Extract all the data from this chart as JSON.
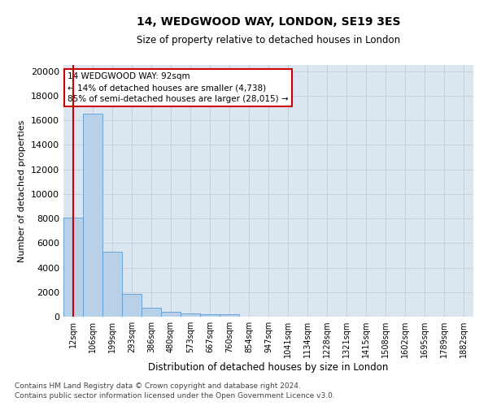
{
  "title1": "14, WEDGWOOD WAY, LONDON, SE19 3ES",
  "title2": "Size of property relative to detached houses in London",
  "xlabel": "Distribution of detached houses by size in London",
  "ylabel": "Number of detached properties",
  "categories": [
    "12sqm",
    "106sqm",
    "199sqm",
    "293sqm",
    "386sqm",
    "480sqm",
    "573sqm",
    "667sqm",
    "760sqm",
    "854sqm",
    "947sqm",
    "1041sqm",
    "1134sqm",
    "1228sqm",
    "1321sqm",
    "1415sqm",
    "1508sqm",
    "1602sqm",
    "1695sqm",
    "1789sqm",
    "1882sqm"
  ],
  "values": [
    8100,
    16500,
    5300,
    1850,
    700,
    380,
    280,
    220,
    180,
    0,
    0,
    0,
    0,
    0,
    0,
    0,
    0,
    0,
    0,
    0,
    0
  ],
  "bar_color": "#b8d0e8",
  "bar_edge_color": "#5b9bd5",
  "vline_color": "#cc0000",
  "annotation_line1": "14 WEDGWOOD WAY: 92sqm",
  "annotation_line2": "← 14% of detached houses are smaller (4,738)",
  "annotation_line3": "85% of semi-detached houses are larger (28,015) →",
  "annotation_box_color": "#ffffff",
  "annotation_box_edge_color": "#cc0000",
  "ylim": [
    0,
    20500
  ],
  "yticks": [
    0,
    2000,
    4000,
    6000,
    8000,
    10000,
    12000,
    14000,
    16000,
    18000,
    20000
  ],
  "grid_color": "#c8d0dc",
  "bg_color": "#dce6f0",
  "footer1": "Contains HM Land Registry data © Crown copyright and database right 2024.",
  "footer2": "Contains public sector information licensed under the Open Government Licence v3.0."
}
